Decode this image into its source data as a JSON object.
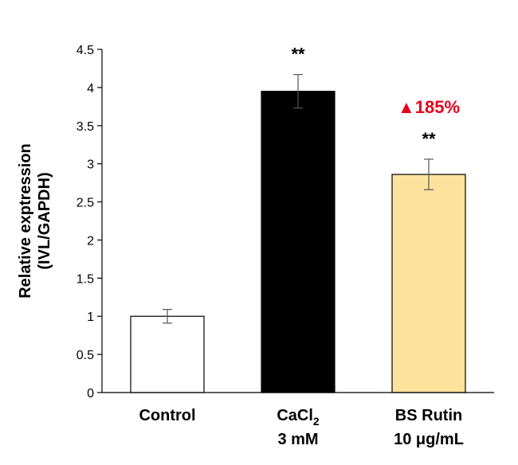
{
  "chart_data": {
    "type": "bar",
    "title": "",
    "ylabel_lines": [
      "Relative exptression",
      "(IVL/GAPDH)"
    ],
    "xlabel": "",
    "ylim": [
      0,
      4.5
    ],
    "yticks": [
      0,
      0.5,
      1,
      1.5,
      2,
      2.5,
      3,
      3.5,
      4,
      4.5
    ],
    "ytick_labels": [
      "0",
      "0.5",
      "1",
      "1.5",
      "2",
      "2.5",
      "3",
      "3.5",
      "4",
      "4.5"
    ],
    "categories": [
      {
        "line1": "Control",
        "line2": "",
        "line1_sub": ""
      },
      {
        "line1": "CaCl",
        "line1_sub": "2",
        "line2": "3 mM"
      },
      {
        "line1": "BS Rutin",
        "line1_sub": "",
        "line2": "10 μg/mL"
      }
    ],
    "values": [
      1.0,
      3.95,
      2.86
    ],
    "errors": [
      0.09,
      0.22,
      0.2
    ],
    "bar_colors": [
      "#ffffff",
      "#000000",
      "#fce29c"
    ],
    "significance": [
      "",
      "**",
      "**"
    ],
    "annotation": {
      "bar_index": 2,
      "text": "▲185%",
      "color": "#e8001c"
    },
    "grid": false,
    "legend": "none"
  }
}
